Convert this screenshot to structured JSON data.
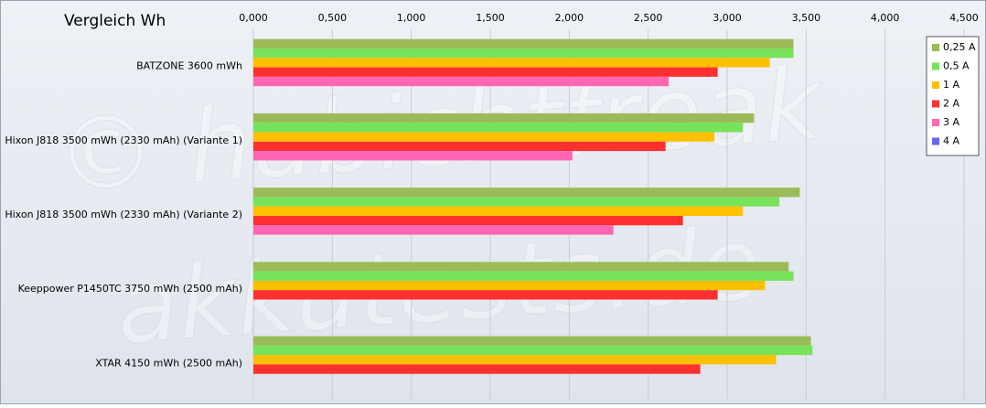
{
  "chart_data": {
    "type": "bar",
    "orientation": "horizontal",
    "title": "Vergleich Wh",
    "watermark": [
      "© habichtfreak",
      "akkutests.de"
    ],
    "categories": [
      "BATZONE 3600 mWh",
      "Hixon J818 3500 mWh (2330 mAh) (Variante 1)",
      "Hixon J818 3500 mWh (2330 mAh) (Variante 2)",
      "Keeppower P1450TC 3750 mWh (2500 mAh)",
      "XTAR 4150 mWh (2500 mAh)"
    ],
    "series": [
      {
        "name": "0,25 A",
        "color": "#9bbb59",
        "values": [
          3.42,
          3.17,
          3.46,
          3.39,
          3.53
        ]
      },
      {
        "name": "0,5 A",
        "color": "#77e35a",
        "values": [
          3.42,
          3.1,
          3.33,
          3.42,
          3.54
        ]
      },
      {
        "name": "1 A",
        "color": "#ffc000",
        "values": [
          3.27,
          2.92,
          3.1,
          3.24,
          3.31
        ]
      },
      {
        "name": "2 A",
        "color": "#ff3030",
        "values": [
          2.94,
          2.61,
          2.72,
          2.94,
          2.83
        ]
      },
      {
        "name": "3 A",
        "color": "#ff66b3",
        "values": [
          2.63,
          2.02,
          2.28,
          null,
          null
        ]
      },
      {
        "name": "4 A",
        "color": "#6666ee",
        "values": [
          null,
          null,
          null,
          null,
          null
        ]
      }
    ],
    "xlim": [
      0,
      4.5
    ],
    "xticks": [
      {
        "value": 0,
        "label": "0,000"
      },
      {
        "value": 0.5,
        "label": "0,500"
      },
      {
        "value": 1,
        "label": "1,000"
      },
      {
        "value": 1.5,
        "label": "1,500"
      },
      {
        "value": 2,
        "label": "2,000"
      },
      {
        "value": 2.5,
        "label": "2,500"
      },
      {
        "value": 3,
        "label": "3,000"
      },
      {
        "value": 3.5,
        "label": "3,500"
      },
      {
        "value": 4,
        "label": "4,000"
      },
      {
        "value": 4.5,
        "label": "4,500"
      }
    ],
    "grid": true,
    "legend": "top-right"
  }
}
